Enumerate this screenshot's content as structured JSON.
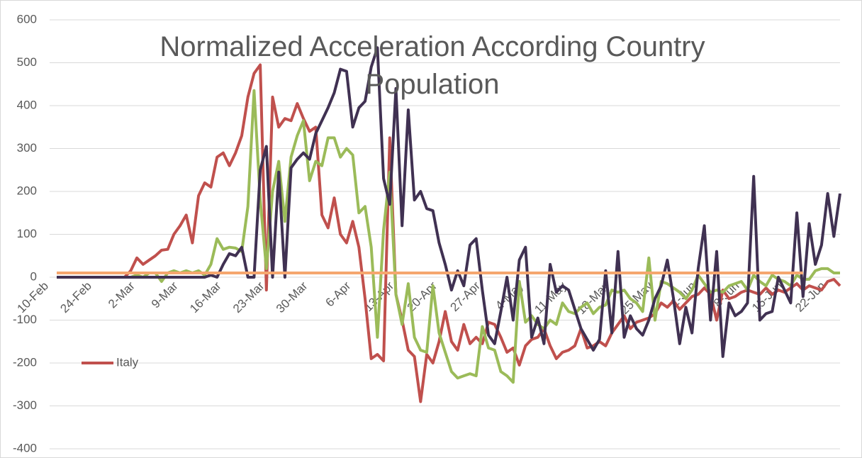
{
  "chart_data": {
    "type": "line",
    "title": "Normalized Acceleration According Country Population",
    "categories": [
      "10-Feb",
      null,
      null,
      null,
      null,
      null,
      null,
      "24-Feb",
      null,
      null,
      null,
      null,
      null,
      null,
      "2-Mar",
      null,
      null,
      null,
      null,
      null,
      null,
      "9-Mar",
      null,
      null,
      null,
      null,
      null,
      null,
      "16-Mar",
      null,
      null,
      null,
      null,
      null,
      null,
      "23-Mar",
      null,
      null,
      null,
      null,
      null,
      null,
      "30-Mar",
      null,
      null,
      null,
      null,
      null,
      null,
      "6-Apr",
      null,
      null,
      null,
      null,
      null,
      null,
      "13-Apr",
      null,
      null,
      null,
      null,
      null,
      null,
      "20-Apr",
      null,
      null,
      null,
      null,
      null,
      null,
      "27-Apr",
      null,
      null,
      null,
      null,
      null,
      null,
      "4-May",
      null,
      null,
      null,
      null,
      null,
      null,
      "11-May",
      null,
      null,
      null,
      null,
      null,
      null,
      "18-May",
      null,
      null,
      null,
      null,
      null,
      null,
      "25-May",
      null,
      null,
      null,
      null,
      null,
      null,
      "1-Jun",
      null,
      null,
      null,
      null,
      null,
      null,
      "8-Jun",
      null,
      null,
      null,
      null,
      null,
      null,
      "15-Jun",
      null,
      null,
      null,
      null,
      null,
      null,
      "22-Jun",
      null
    ],
    "series": [
      {
        "name": "Italy",
        "color": "#c0504d",
        "values": [
          0,
          0,
          0,
          0,
          0,
          0,
          0,
          0,
          0,
          0,
          0,
          0,
          15,
          45,
          30,
          40,
          50,
          63,
          65,
          100,
          120,
          145,
          80,
          190,
          220,
          210,
          280,
          290,
          260,
          290,
          330,
          420,
          475,
          495,
          -30,
          420,
          350,
          370,
          365,
          405,
          370,
          340,
          350,
          145,
          115,
          185,
          100,
          80,
          130,
          70,
          -50,
          -190,
          -180,
          -195,
          325,
          -40,
          -100,
          -170,
          -185,
          -290,
          -180,
          -200,
          -150,
          -80,
          -150,
          -170,
          -110,
          -155,
          -140,
          -155,
          -105,
          -110,
          -140,
          -175,
          -165,
          -205,
          -160,
          -145,
          -140,
          -120,
          -160,
          -190,
          -175,
          -170,
          -160,
          -120,
          -165,
          -160,
          -150,
          -160,
          -130,
          -110,
          -90,
          -120,
          -105,
          -100,
          -95,
          -85,
          -60,
          -70,
          -55,
          -75,
          -60,
          -45,
          -40,
          -25,
          -40,
          -100,
          -30,
          -50,
          -45,
          -35,
          -30,
          -35,
          -40,
          -25,
          -40,
          -30,
          -35,
          -25,
          -15,
          -30,
          -20,
          -25,
          -30,
          -10,
          -5,
          -20
        ]
      },
      {
        "color": "#9bbb59",
        "values": [
          0,
          0,
          0,
          0,
          0,
          0,
          0,
          0,
          0,
          0,
          0,
          0,
          0,
          5,
          0,
          10,
          10,
          -10,
          10,
          15,
          10,
          15,
          10,
          15,
          5,
          30,
          90,
          65,
          70,
          68,
          60,
          165,
          435,
          180,
          20,
          200,
          270,
          130,
          280,
          330,
          365,
          225,
          270,
          260,
          325,
          325,
          280,
          300,
          285,
          150,
          165,
          70,
          -140,
          110,
          245,
          -40,
          -110,
          -15,
          -140,
          -170,
          -175,
          -20,
          -130,
          -175,
          -220,
          -235,
          -230,
          -225,
          -230,
          -115,
          -165,
          -170,
          -220,
          -230,
          -245,
          -10,
          -105,
          -90,
          -110,
          -120,
          -100,
          -110,
          -60,
          -80,
          -85,
          -70,
          -60,
          -85,
          -70,
          -65,
          -30,
          -35,
          -30,
          -50,
          -60,
          -80,
          45,
          -100,
          -10,
          -15,
          -25,
          -35,
          -50,
          -30,
          5,
          -15,
          -35,
          -30,
          -35,
          -20,
          -15,
          -10,
          -30,
          5,
          -10,
          -20,
          5,
          -5,
          -10,
          -20,
          5,
          -5,
          -5,
          15,
          20,
          20,
          10,
          10
        ]
      },
      {
        "color": "#403152",
        "values": [
          0,
          0,
          0,
          0,
          0,
          0,
          0,
          0,
          0,
          0,
          0,
          0,
          0,
          0,
          0,
          0,
          0,
          0,
          0,
          0,
          0,
          0,
          0,
          0,
          0,
          5,
          0,
          30,
          55,
          50,
          70,
          0,
          0,
          250,
          305,
          0,
          245,
          0,
          255,
          275,
          290,
          275,
          335,
          365,
          395,
          430,
          485,
          480,
          350,
          395,
          410,
          490,
          535,
          230,
          170,
          440,
          120,
          390,
          180,
          200,
          160,
          155,
          80,
          30,
          -30,
          15,
          -20,
          75,
          90,
          -30,
          -135,
          -155,
          -80,
          0,
          -100,
          40,
          70,
          -140,
          -95,
          -155,
          30,
          -35,
          -20,
          -30,
          -75,
          -120,
          -145,
          -170,
          -145,
          15,
          -130,
          60,
          -140,
          -90,
          -120,
          -135,
          -100,
          -50,
          -20,
          40,
          -50,
          -155,
          -70,
          -130,
          20,
          120,
          -100,
          60,
          -185,
          -60,
          -90,
          -80,
          -60,
          235,
          -100,
          -85,
          -80,
          0,
          -30,
          -60,
          150,
          -45,
          125,
          30,
          75,
          195,
          95,
          195
        ]
      },
      {
        "color": "#f5a66e",
        "values": [
          10,
          10,
          10,
          10,
          10,
          10,
          10,
          10,
          10,
          10,
          10,
          10,
          10,
          10,
          10,
          10,
          10,
          10,
          10,
          10,
          10,
          10,
          10,
          10,
          10,
          10,
          10,
          10,
          10,
          10,
          10,
          10,
          10,
          10,
          10,
          10,
          10,
          10,
          10,
          10,
          10,
          10,
          10,
          10,
          10,
          10,
          10,
          10,
          10,
          10,
          10,
          10,
          10,
          10,
          10,
          10,
          10,
          10,
          10,
          10,
          10,
          10,
          10,
          10,
          10,
          10,
          10,
          10,
          10,
          10,
          10,
          10,
          10,
          10,
          10,
          10,
          10,
          10,
          10,
          10,
          10,
          10,
          10,
          10,
          10,
          10,
          10,
          10,
          10,
          10,
          10,
          10,
          10,
          10,
          10,
          10,
          10,
          10,
          10,
          10,
          10,
          10,
          10,
          10,
          10,
          10,
          10,
          10,
          10,
          10,
          10,
          10,
          10,
          10,
          10,
          10,
          10,
          10,
          10,
          10,
          10,
          10,
          null,
          null,
          null,
          null,
          null,
          null
        ]
      }
    ],
    "ylim": [
      -400,
      600
    ],
    "yticks": [
      -400,
      -300,
      -200,
      -100,
      0,
      100,
      200,
      300,
      400,
      500,
      600
    ],
    "grid": true
  }
}
